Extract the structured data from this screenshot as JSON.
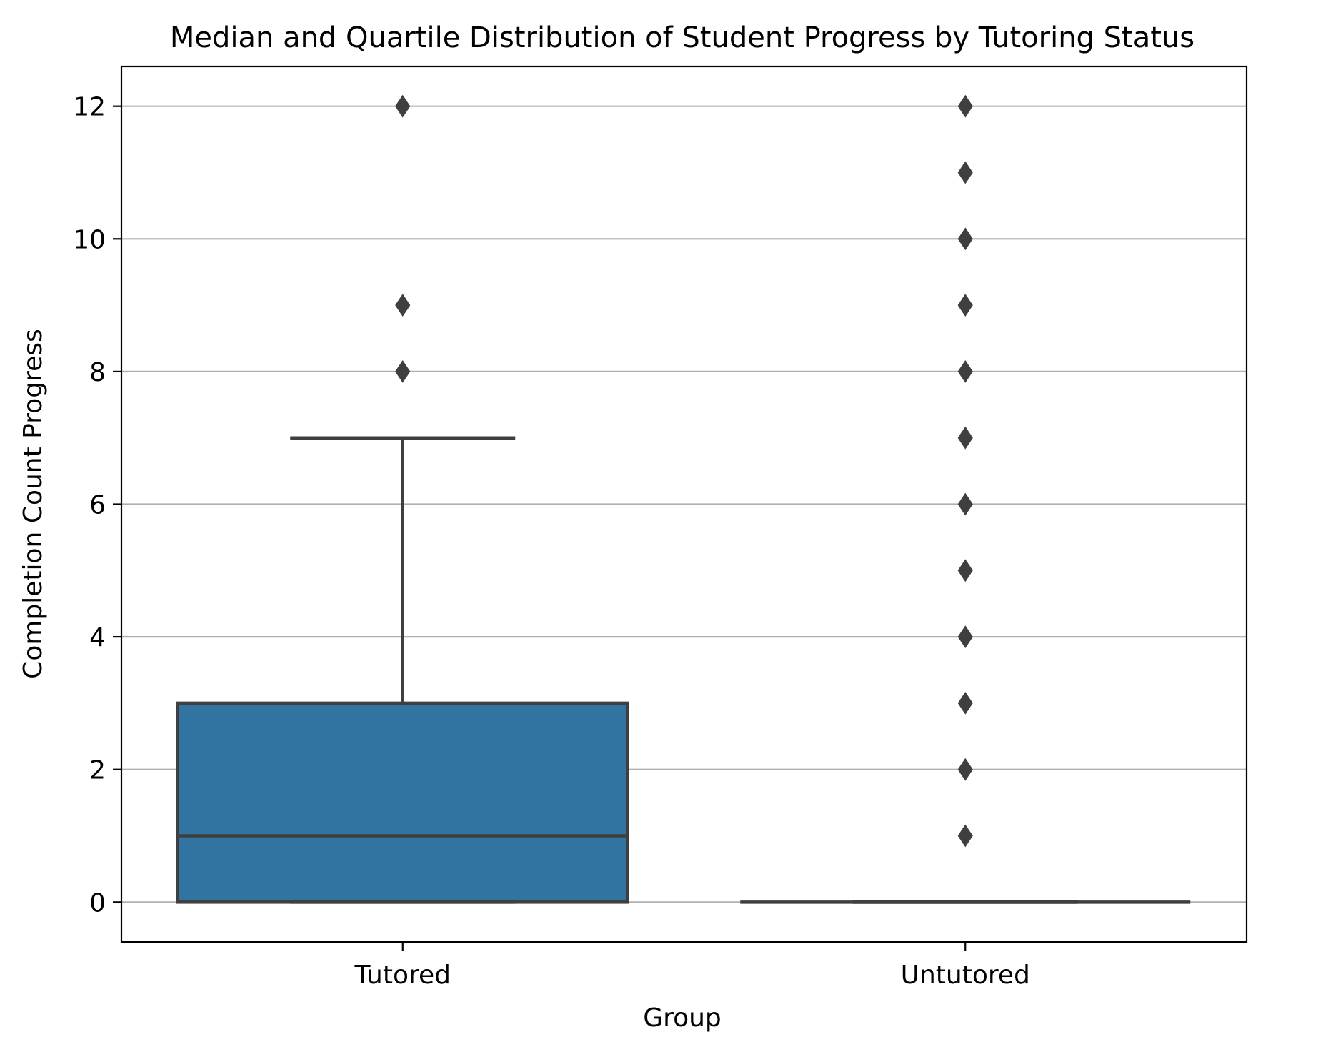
{
  "chart_data": {
    "type": "box",
    "title": "Median and Quartile Distribution of Student Progress by Tutoring Status",
    "xlabel": "Group",
    "ylabel": "Completion Count Progress",
    "categories": [
      "Tutored",
      "Untutored"
    ],
    "ylim": [
      -0.6,
      12.6
    ],
    "yticks": [
      0,
      2,
      4,
      6,
      8,
      10,
      12
    ],
    "grid": {
      "y": true,
      "x": false
    },
    "boxes": [
      {
        "category": "Tutored",
        "whisker_low": 0,
        "q1": 0,
        "median": 1,
        "q3": 3,
        "whisker_high": 7,
        "outliers": [
          8,
          9,
          12
        ]
      },
      {
        "category": "Untutored",
        "whisker_low": 0,
        "q1": 0,
        "median": 0,
        "q3": 0,
        "whisker_high": 0,
        "outliers": [
          1,
          2,
          3,
          4,
          5,
          6,
          7,
          8,
          9,
          10,
          11,
          12
        ]
      }
    ],
    "colors": {
      "box_fill": "#3274a1",
      "box_edge": "#3f3f3f",
      "outlier": "#3f3f3f",
      "grid": "#b0b0b0",
      "axes": "#000000"
    }
  }
}
